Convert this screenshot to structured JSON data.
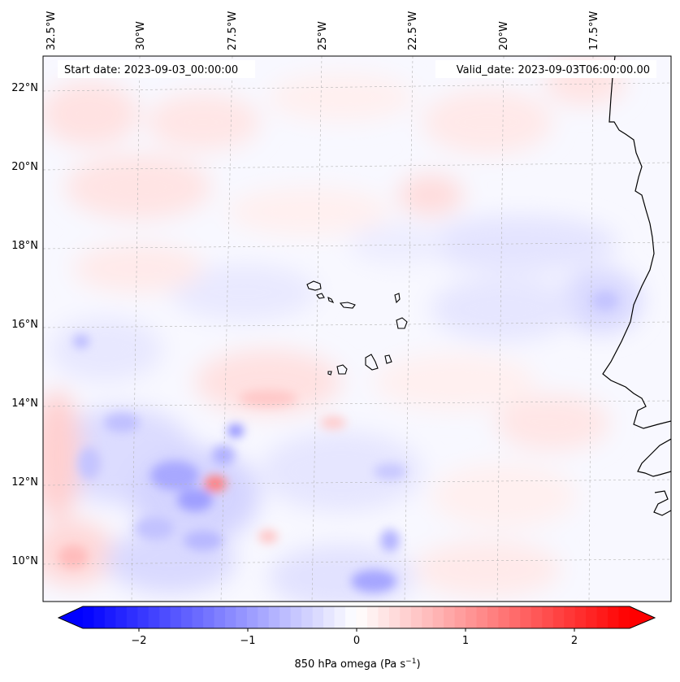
{
  "map": {
    "start_date_label": "Start date: 2023-09-03_00:00:00",
    "valid_date_label": "Valid_date: 2023-09-03T06:00:00.00",
    "longitude_labels": [
      "32.5°W",
      "30°W",
      "27.5°W",
      "25°W",
      "22.5°W",
      "20°W",
      "17.5°W"
    ],
    "latitude_labels": [
      "22°N",
      "20°N",
      "18°N",
      "16°N",
      "14°N",
      "12°N",
      "10°N"
    ],
    "colors": {
      "negative_max": "#0000ff",
      "neutral": "#ffffff",
      "positive_max": "#ff0000",
      "coastline": "#000000"
    }
  },
  "colorbar": {
    "tick_labels": [
      "−2",
      "−1",
      "0",
      "1",
      "2"
    ],
    "label_main": "850 hPa omega (Pa s",
    "label_exp": "−1",
    "label_close": ")"
  }
}
